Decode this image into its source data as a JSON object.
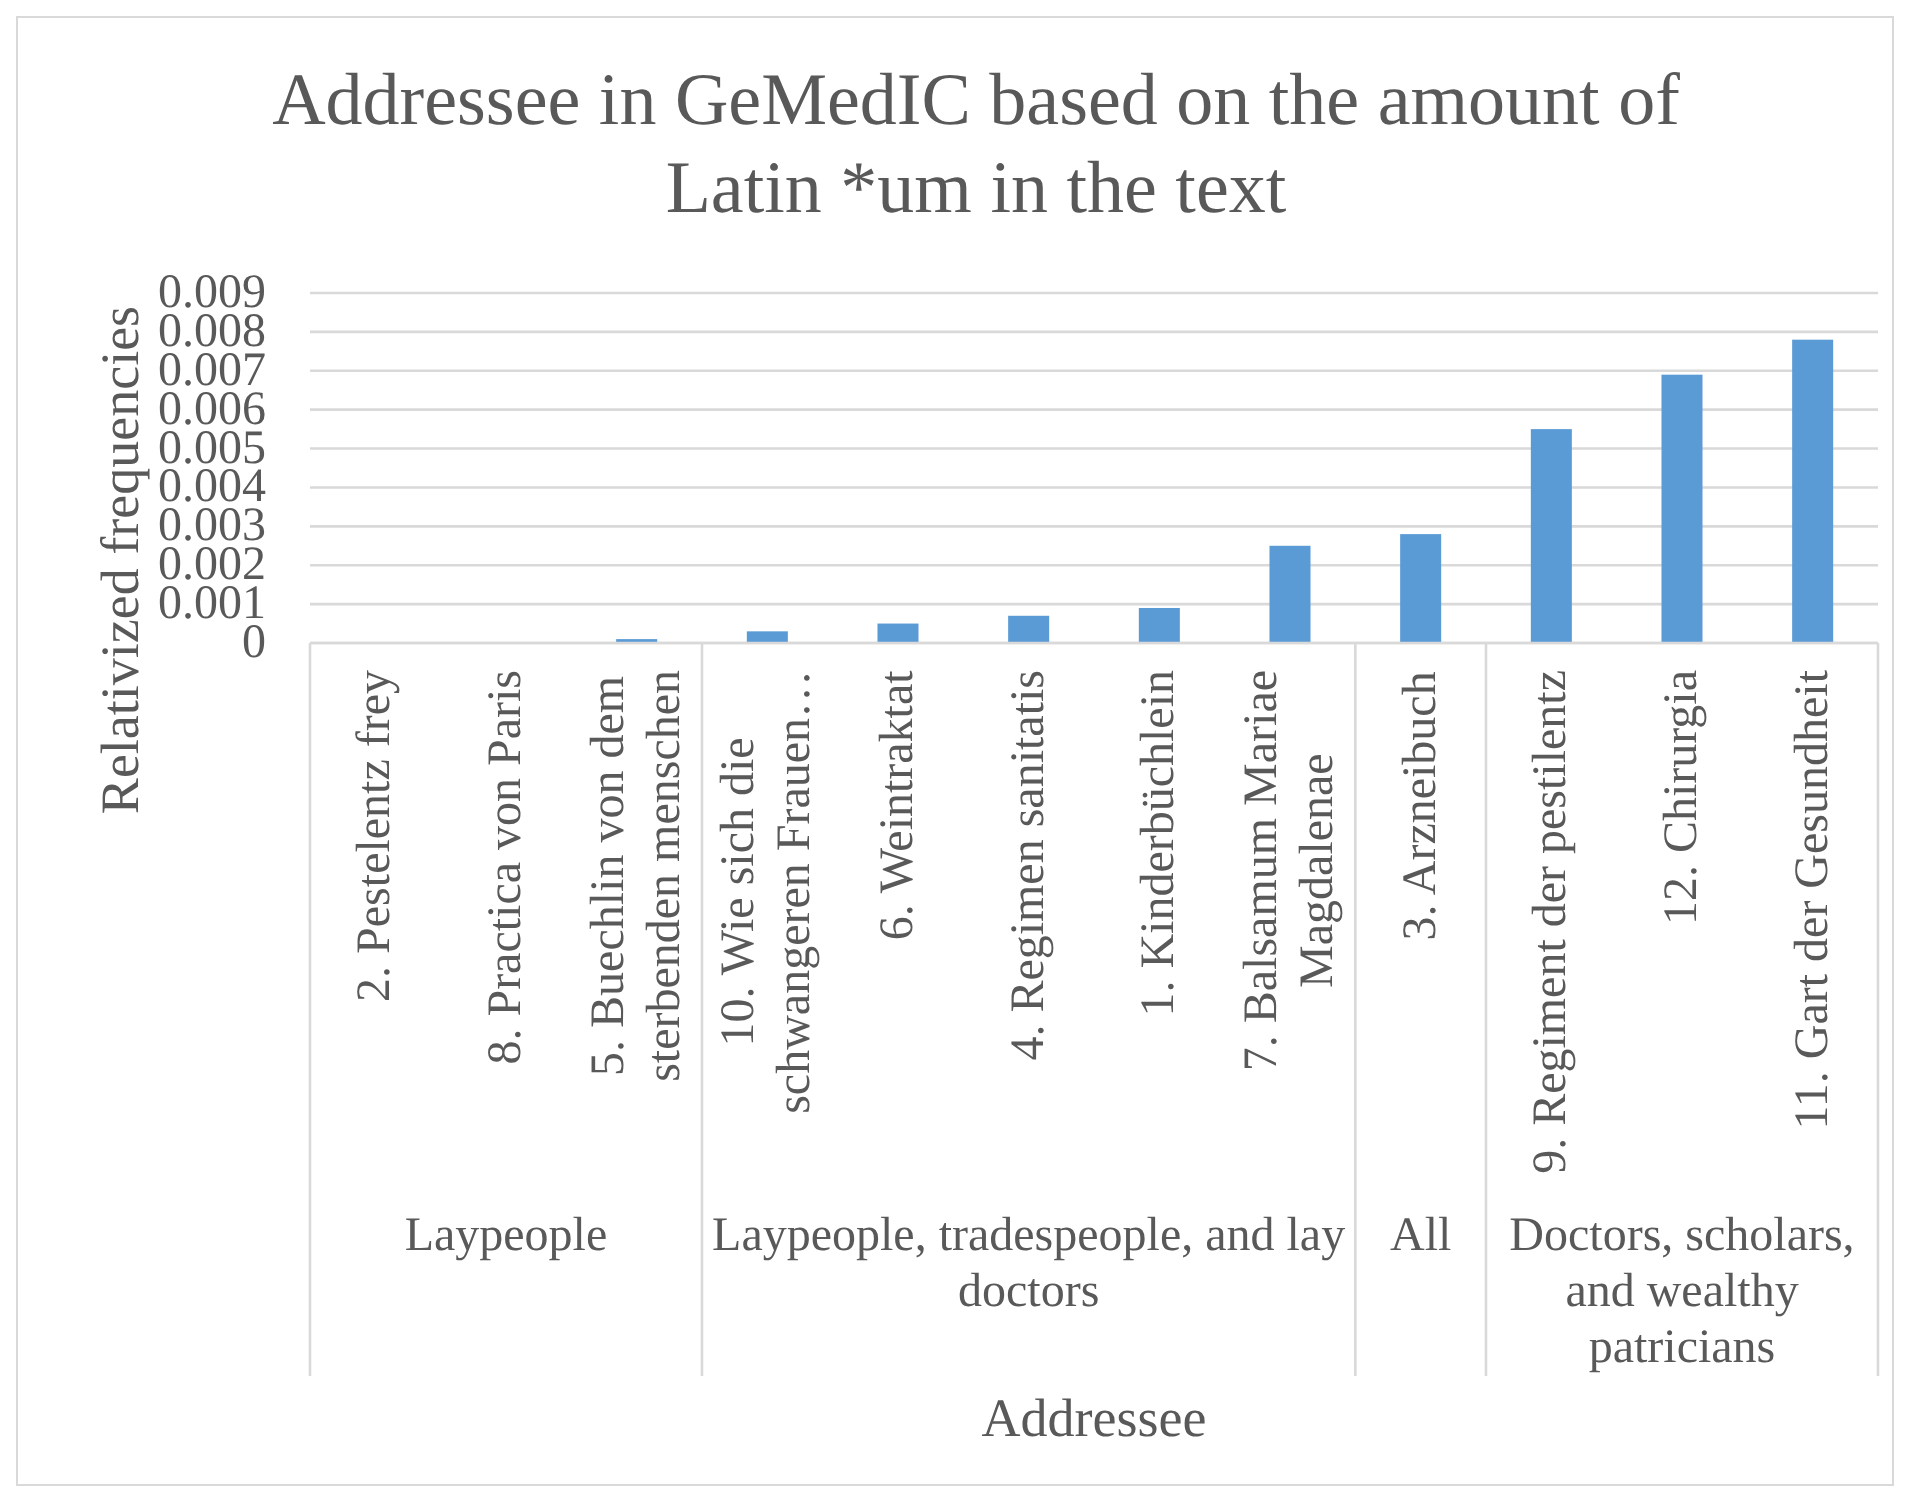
{
  "chart_data": {
    "type": "bar",
    "title": "Addressee in GeMedIC based on the amount of Latin *um in the text",
    "xlabel": "Addressee",
    "ylabel": "Relativized frequencies",
    "categories": [
      "2. Pestelentz frey",
      "8. Practica von Paris",
      "5. Buechlin von dem sterbenden menschen",
      "10. Wie sich die schwangeren Frauen…",
      "6. Weintraktat",
      "4. Regimen sanitatis",
      "1. Kinderbüchlein",
      "7. Balsamum Mariae Magdalenae",
      "3. Arzneibuch",
      "9. Regiment der pestilentz",
      "12. Chirurgia",
      "11. Gart der Gesundheit"
    ],
    "values": [
      0,
      0,
      0.0001,
      0.0003,
      0.0005,
      0.0007,
      0.0009,
      0.0025,
      0.0028,
      0.0055,
      0.0069,
      0.0078
    ],
    "color": "#5b9bd5",
    "ylim": [
      0,
      0.009
    ],
    "yticks": [
      0,
      0.001,
      0.002,
      0.003,
      0.004,
      0.005,
      0.006,
      0.007,
      0.008,
      0.009
    ],
    "grid": "y",
    "annotations": [
      "Laypeople",
      "Laypeople, tradespeople, and lay doctors",
      "All",
      "Doctors, scholars, and wealthy patricians"
    ]
  }
}
